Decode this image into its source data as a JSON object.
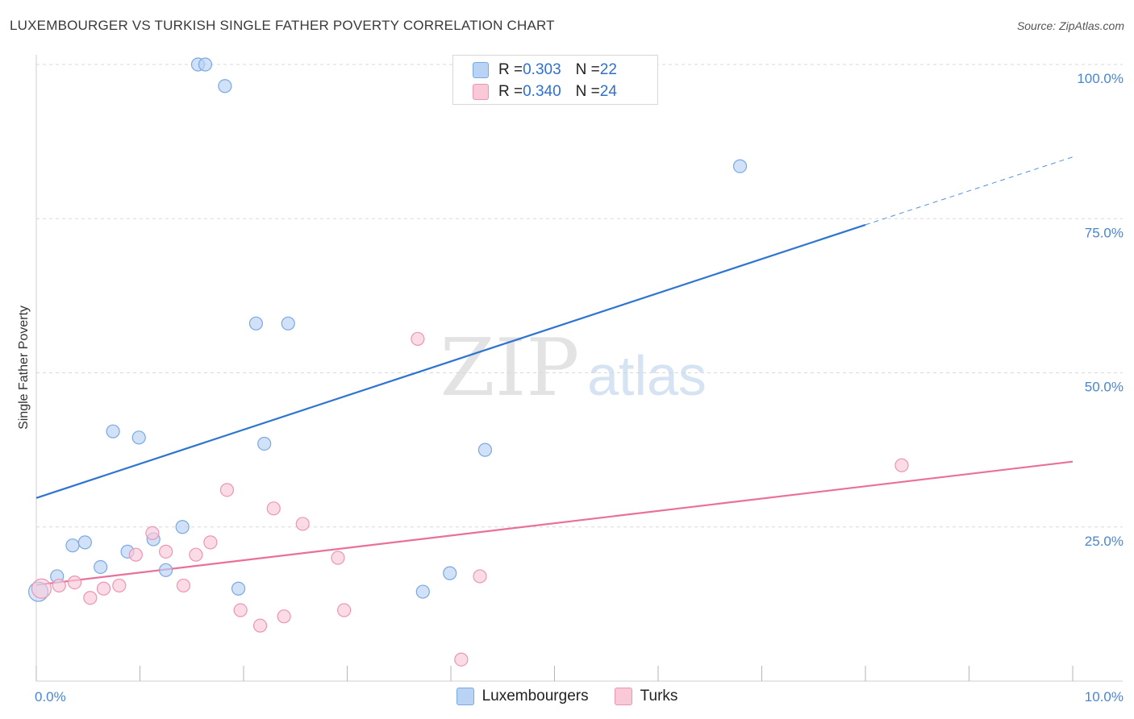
{
  "title": "LUXEMBOURGER VS TURKISH SINGLE FATHER POVERTY CORRELATION CHART",
  "source": "Source: ZipAtlas.com",
  "watermark": {
    "zip": "ZIP",
    "atlas": "atlas"
  },
  "colors": {
    "blue_fill": "#b9d3f5",
    "blue_stroke": "#7aa8e3",
    "blue_line": "#2f74d0",
    "pink_fill": "#f9c9d8",
    "pink_stroke": "#ee94b3",
    "pink_line": "#e8709a",
    "accent_text": "#2f6fd0"
  },
  "legend": {
    "rows": [
      {
        "r_label": "R = ",
        "r_value": "0.303",
        "n_label": "N = ",
        "n_value": "22"
      },
      {
        "r_label": "R = ",
        "r_value": "0.340",
        "n_label": "N = ",
        "n_value": "24"
      }
    ]
  },
  "bottom_legend": [
    "Luxembourgers",
    "Turks"
  ],
  "chart_data": {
    "type": "scatter",
    "title": "LUXEMBOURGER VS TURKISH SINGLE FATHER POVERTY CORRELATION CHART",
    "xlabel": "",
    "ylabel": "Single Father Poverty",
    "xlim": [
      0,
      10
    ],
    "ylim": [
      0,
      100
    ],
    "x_tick_labels": [
      "0.0%",
      "10.0%"
    ],
    "y_ticks": [
      25,
      50,
      75,
      100
    ],
    "y_tick_labels": [
      "25.0%",
      "50.0%",
      "75.0%",
      "100.0%"
    ],
    "grid": true,
    "legend_position": "top-center",
    "series": [
      {
        "name": "Luxembourgers",
        "R": 0.303,
        "N": 22,
        "points": [
          [
            0.02,
            14.5
          ],
          [
            0.2,
            17.0
          ],
          [
            0.35,
            22.0
          ],
          [
            0.47,
            22.5
          ],
          [
            0.62,
            18.5
          ],
          [
            0.74,
            40.5
          ],
          [
            0.88,
            21.0
          ],
          [
            0.99,
            39.5
          ],
          [
            1.13,
            23.0
          ],
          [
            1.25,
            18.0
          ],
          [
            1.41,
            25.0
          ],
          [
            1.56,
            100.0
          ],
          [
            1.63,
            100.0
          ],
          [
            1.82,
            96.5
          ],
          [
            1.95,
            15.0
          ],
          [
            2.12,
            58.0
          ],
          [
            2.2,
            38.5
          ],
          [
            2.43,
            58.0
          ],
          [
            3.73,
            14.5
          ],
          [
            3.99,
            17.5
          ],
          [
            4.33,
            37.5
          ],
          [
            6.79,
            83.5
          ]
        ],
        "trend": {
          "x_start": 0,
          "y_start": 29.7,
          "x_end": 8.0,
          "y_end": 74.0,
          "dashed_to_x": 10.0,
          "dashed_to_y": 85.0
        }
      },
      {
        "name": "Turks",
        "R": 0.34,
        "N": 24,
        "points": [
          [
            0.05,
            15.0
          ],
          [
            0.22,
            15.5
          ],
          [
            0.37,
            16.0
          ],
          [
            0.52,
            13.5
          ],
          [
            0.65,
            15.0
          ],
          [
            0.8,
            15.5
          ],
          [
            0.96,
            20.5
          ],
          [
            1.12,
            24.0
          ],
          [
            1.25,
            21.0
          ],
          [
            1.42,
            15.5
          ],
          [
            1.54,
            20.5
          ],
          [
            1.68,
            22.5
          ],
          [
            1.84,
            31.0
          ],
          [
            1.97,
            11.5
          ],
          [
            2.16,
            9.0
          ],
          [
            2.29,
            28.0
          ],
          [
            2.39,
            10.5
          ],
          [
            2.57,
            25.5
          ],
          [
            2.91,
            20.0
          ],
          [
            2.97,
            11.5
          ],
          [
            3.68,
            55.5
          ],
          [
            4.1,
            3.5
          ],
          [
            4.28,
            17.0
          ],
          [
            8.35,
            35.0
          ]
        ],
        "trend": {
          "x_start": 0,
          "y_start": 15.6,
          "x_end": 10.0,
          "y_end": 35.6
        }
      }
    ]
  }
}
